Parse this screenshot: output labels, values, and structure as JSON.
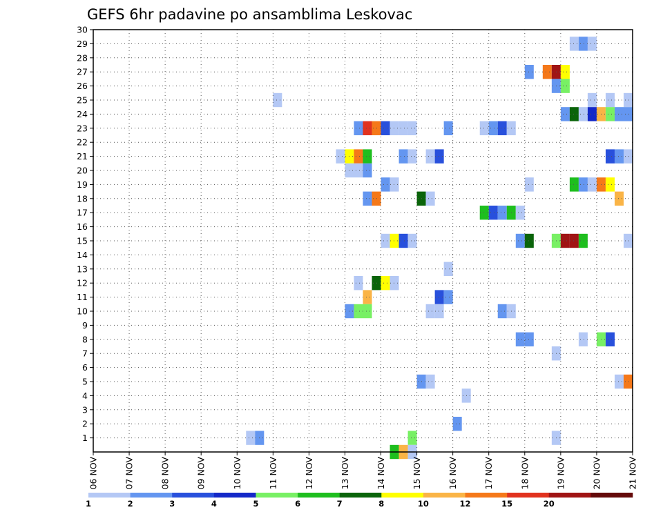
{
  "chart_data": {
    "type": "heatmap",
    "title": "GEFS 6hr padavine po ansamblima Leskovac",
    "xlabel": "",
    "ylabel": "",
    "x_axis": {
      "start_day": 6,
      "end_day": 21,
      "month": "NOV",
      "steps_per_day": 4
    },
    "y_axis": {
      "min": 0,
      "max": 30,
      "tick_labels": [
        1,
        2,
        3,
        4,
        5,
        6,
        7,
        8,
        9,
        10,
        11,
        12,
        13,
        14,
        15,
        16,
        17,
        18,
        19,
        20,
        21,
        22,
        23,
        24,
        25,
        26,
        27,
        28,
        29,
        30
      ]
    },
    "x_tick_labels": [
      "06 NOV",
      "07 NOV",
      "08 NOV",
      "09 NOV",
      "10 NOV",
      "11 NOV",
      "12 NOV",
      "13 NOV",
      "14 NOV",
      "15 NOV",
      "16 NOV",
      "17 NOV",
      "18 NOV",
      "19 NOV",
      "20 NOV",
      "21 NOV"
    ],
    "grid": true,
    "colorbar": {
      "colors": [
        "#b4c8f5",
        "#6496f0",
        "#2850dc",
        "#1428c8",
        "#78f064",
        "#1ebe1e",
        "#0a640a",
        "#ffff00",
        "#fab446",
        "#f57819",
        "#e1321e",
        "#a01414",
        "#640a0a"
      ],
      "labels": [
        "1",
        "2",
        "3",
        "4",
        "5",
        "6",
        "7",
        "8",
        "10",
        "12",
        "15",
        "20"
      ]
    },
    "cells": [
      {
        "member": 29,
        "day": 19.25,
        "bin": 0
      },
      {
        "member": 29,
        "day": 19.5,
        "bin": 1
      },
      {
        "member": 29,
        "day": 19.75,
        "bin": 0
      },
      {
        "member": 27,
        "day": 18.0,
        "bin": 1
      },
      {
        "member": 27,
        "day": 18.5,
        "bin": 9
      },
      {
        "member": 27,
        "day": 18.75,
        "bin": 11
      },
      {
        "member": 27,
        "day": 19.0,
        "bin": 7
      },
      {
        "member": 26,
        "day": 18.75,
        "bin": 1
      },
      {
        "member": 26,
        "day": 19.0,
        "bin": 4
      },
      {
        "member": 25,
        "day": 11.0,
        "bin": 0
      },
      {
        "member": 25,
        "day": 19.75,
        "bin": 0
      },
      {
        "member": 25,
        "day": 20.25,
        "bin": 0
      },
      {
        "member": 25,
        "day": 20.75,
        "bin": 0
      },
      {
        "member": 24,
        "day": 19.0,
        "bin": 1
      },
      {
        "member": 24,
        "day": 19.25,
        "bin": 6
      },
      {
        "member": 24,
        "day": 19.5,
        "bin": 0
      },
      {
        "member": 24,
        "day": 19.75,
        "bin": 3
      },
      {
        "member": 24,
        "day": 20.0,
        "bin": 8
      },
      {
        "member": 24,
        "day": 20.25,
        "bin": 4
      },
      {
        "member": 24,
        "day": 20.5,
        "bin": 1
      },
      {
        "member": 24,
        "day": 20.75,
        "bin": 1
      },
      {
        "member": 23,
        "day": 13.25,
        "bin": 1
      },
      {
        "member": 23,
        "day": 13.5,
        "bin": 10
      },
      {
        "member": 23,
        "day": 13.75,
        "bin": 9
      },
      {
        "member": 23,
        "day": 14.0,
        "bin": 2
      },
      {
        "member": 23,
        "day": 14.25,
        "bin": 0
      },
      {
        "member": 23,
        "day": 14.5,
        "bin": 0
      },
      {
        "member": 23,
        "day": 14.75,
        "bin": 0
      },
      {
        "member": 23,
        "day": 15.75,
        "bin": 1
      },
      {
        "member": 23,
        "day": 16.75,
        "bin": 0
      },
      {
        "member": 23,
        "day": 17.0,
        "bin": 1
      },
      {
        "member": 23,
        "day": 17.25,
        "bin": 2
      },
      {
        "member": 23,
        "day": 17.5,
        "bin": 0
      },
      {
        "member": 21,
        "day": 12.75,
        "bin": 0
      },
      {
        "member": 21,
        "day": 13.0,
        "bin": 7
      },
      {
        "member": 21,
        "day": 13.25,
        "bin": 9
      },
      {
        "member": 21,
        "day": 13.5,
        "bin": 5
      },
      {
        "member": 21,
        "day": 14.5,
        "bin": 1
      },
      {
        "member": 21,
        "day": 14.75,
        "bin": 0
      },
      {
        "member": 21,
        "day": 15.25,
        "bin": 0
      },
      {
        "member": 21,
        "day": 15.5,
        "bin": 2
      },
      {
        "member": 21,
        "day": 20.25,
        "bin": 2
      },
      {
        "member": 21,
        "day": 20.5,
        "bin": 1
      },
      {
        "member": 21,
        "day": 20.75,
        "bin": 0
      },
      {
        "member": 20,
        "day": 13.0,
        "bin": 0
      },
      {
        "member": 20,
        "day": 13.25,
        "bin": 0
      },
      {
        "member": 20,
        "day": 13.5,
        "bin": 1
      },
      {
        "member": 19,
        "day": 14.0,
        "bin": 1
      },
      {
        "member": 19,
        "day": 14.25,
        "bin": 0
      },
      {
        "member": 19,
        "day": 18.0,
        "bin": 0
      },
      {
        "member": 19,
        "day": 19.25,
        "bin": 5
      },
      {
        "member": 19,
        "day": 19.5,
        "bin": 1
      },
      {
        "member": 19,
        "day": 19.75,
        "bin": 0
      },
      {
        "member": 19,
        "day": 20.0,
        "bin": 9
      },
      {
        "member": 19,
        "day": 20.25,
        "bin": 7
      },
      {
        "member": 18,
        "day": 13.5,
        "bin": 1
      },
      {
        "member": 18,
        "day": 13.75,
        "bin": 9
      },
      {
        "member": 18,
        "day": 15.0,
        "bin": 6
      },
      {
        "member": 18,
        "day": 15.25,
        "bin": 0
      },
      {
        "member": 18,
        "day": 20.5,
        "bin": 8
      },
      {
        "member": 17,
        "day": 16.75,
        "bin": 5
      },
      {
        "member": 17,
        "day": 17.0,
        "bin": 2
      },
      {
        "member": 17,
        "day": 17.25,
        "bin": 1
      },
      {
        "member": 17,
        "day": 17.5,
        "bin": 5
      },
      {
        "member": 17,
        "day": 17.75,
        "bin": 0
      },
      {
        "member": 15,
        "day": 14.0,
        "bin": 0
      },
      {
        "member": 15,
        "day": 14.25,
        "bin": 7
      },
      {
        "member": 15,
        "day": 14.5,
        "bin": 2
      },
      {
        "member": 15,
        "day": 14.75,
        "bin": 0
      },
      {
        "member": 15,
        "day": 17.75,
        "bin": 1
      },
      {
        "member": 15,
        "day": 18.0,
        "bin": 6
      },
      {
        "member": 15,
        "day": 18.75,
        "bin": 4
      },
      {
        "member": 15,
        "day": 19.0,
        "bin": 11
      },
      {
        "member": 15,
        "day": 19.25,
        "bin": 11
      },
      {
        "member": 15,
        "day": 19.5,
        "bin": 5
      },
      {
        "member": 15,
        "day": 20.75,
        "bin": 0
      },
      {
        "member": 13,
        "day": 15.75,
        "bin": 0
      },
      {
        "member": 12,
        "day": 13.25,
        "bin": 0
      },
      {
        "member": 12,
        "day": 13.75,
        "bin": 6
      },
      {
        "member": 12,
        "day": 14.0,
        "bin": 7
      },
      {
        "member": 12,
        "day": 14.25,
        "bin": 0
      },
      {
        "member": 11,
        "day": 13.5,
        "bin": 8
      },
      {
        "member": 11,
        "day": 15.5,
        "bin": 2
      },
      {
        "member": 11,
        "day": 15.75,
        "bin": 1
      },
      {
        "member": 10,
        "day": 13.0,
        "bin": 1
      },
      {
        "member": 10,
        "day": 13.25,
        "bin": 4
      },
      {
        "member": 10,
        "day": 13.5,
        "bin": 4
      },
      {
        "member": 10,
        "day": 15.25,
        "bin": 0
      },
      {
        "member": 10,
        "day": 15.5,
        "bin": 0
      },
      {
        "member": 10,
        "day": 17.25,
        "bin": 1
      },
      {
        "member": 10,
        "day": 17.5,
        "bin": 0
      },
      {
        "member": 8,
        "day": 17.75,
        "bin": 1
      },
      {
        "member": 8,
        "day": 18.0,
        "bin": 1
      },
      {
        "member": 8,
        "day": 19.5,
        "bin": 0
      },
      {
        "member": 8,
        "day": 20.0,
        "bin": 4
      },
      {
        "member": 8,
        "day": 20.25,
        "bin": 2
      },
      {
        "member": 7,
        "day": 18.75,
        "bin": 0
      },
      {
        "member": 5,
        "day": 15.0,
        "bin": 1
      },
      {
        "member": 5,
        "day": 15.25,
        "bin": 0
      },
      {
        "member": 5,
        "day": 20.5,
        "bin": 0
      },
      {
        "member": 5,
        "day": 20.75,
        "bin": 9
      },
      {
        "member": 4,
        "day": 16.25,
        "bin": 0
      },
      {
        "member": 2,
        "day": 16.0,
        "bin": 1
      },
      {
        "member": 1,
        "day": 10.25,
        "bin": 0
      },
      {
        "member": 1,
        "day": 10.5,
        "bin": 1
      },
      {
        "member": 1,
        "day": 14.75,
        "bin": 4
      },
      {
        "member": 1,
        "day": 18.75,
        "bin": 0
      },
      {
        "member": 0,
        "day": 14.25,
        "bin": 5
      },
      {
        "member": 0,
        "day": 14.5,
        "bin": 8
      },
      {
        "member": 0,
        "day": 14.75,
        "bin": 0
      }
    ]
  }
}
